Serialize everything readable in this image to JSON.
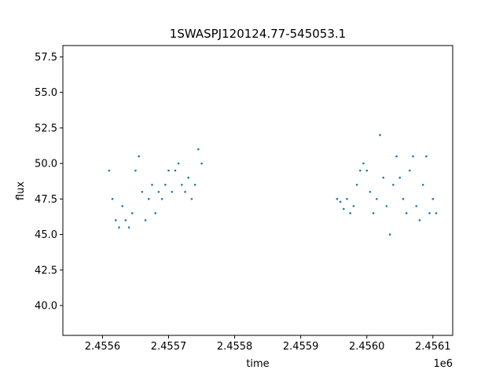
{
  "chart_data": {
    "type": "scatter",
    "title": "1SWASPJ120124.77-545053.1",
    "xlabel": "time",
    "ylabel": "flux",
    "x_offset_label": "1e6",
    "xlim": [
      2.45554,
      2.45613
    ],
    "ylim": [
      37.9,
      58.3
    ],
    "x_ticks": [
      2.4556,
      2.4557,
      2.4558,
      2.4559,
      2.456,
      2.4561
    ],
    "x_tick_labels": [
      "2.4556",
      "2.4557",
      "2.4558",
      "2.4559",
      "2.4560",
      "2.4561"
    ],
    "y_ticks": [
      40.0,
      42.5,
      45.0,
      47.5,
      50.0,
      52.5,
      55.0,
      57.5
    ],
    "y_tick_labels": [
      "40.0",
      "42.5",
      "45.0",
      "47.5",
      "50.0",
      "52.5",
      "55.0",
      "57.5"
    ],
    "grid": false,
    "marker_color": "#1f77b4",
    "series": [
      {
        "x": [
          2.45561,
          2.455615,
          2.45562,
          2.455625,
          2.45563,
          2.455635,
          2.45564,
          2.455645,
          2.45565,
          2.455655,
          2.45566,
          2.455665,
          2.45567,
          2.455675,
          2.45568,
          2.455685,
          2.45569,
          2.455695,
          2.4557,
          2.455705,
          2.45571,
          2.455715,
          2.45572,
          2.455725,
          2.45573,
          2.455735,
          2.45574,
          2.455745,
          2.45575
        ],
        "y": [
          49.5,
          47.5,
          46.0,
          45.5,
          47.0,
          46.0,
          45.5,
          46.5,
          49.5,
          50.5,
          48.0,
          46.0,
          47.5,
          48.5,
          46.5,
          48.0,
          47.5,
          48.5,
          49.5,
          48.0,
          49.5,
          50.0,
          48.5,
          48.0,
          49.0,
          47.5,
          48.5,
          51.0,
          50.0
        ]
      },
      {
        "x": [
          2.455955,
          2.45596,
          2.455965,
          2.45597,
          2.455975,
          2.45598,
          2.455985,
          2.45599,
          2.455995,
          2.456,
          2.456005,
          2.45601,
          2.456015,
          2.45602,
          2.456025,
          2.45603,
          2.456035,
          2.45604,
          2.456045,
          2.45605,
          2.456055,
          2.45606,
          2.456065,
          2.45607,
          2.456075,
          2.45608,
          2.456085,
          2.45609,
          2.456095,
          2.4561,
          2.456105
        ],
        "y": [
          47.5,
          47.3,
          46.8,
          47.5,
          46.5,
          47.0,
          48.5,
          49.5,
          50.0,
          49.5,
          48.0,
          46.5,
          47.5,
          52.0,
          49.0,
          47.0,
          45.0,
          48.5,
          50.5,
          49.0,
          47.5,
          46.5,
          49.5,
          50.5,
          47.0,
          46.0,
          48.5,
          50.5,
          46.5,
          47.5,
          46.5
        ]
      }
    ]
  }
}
